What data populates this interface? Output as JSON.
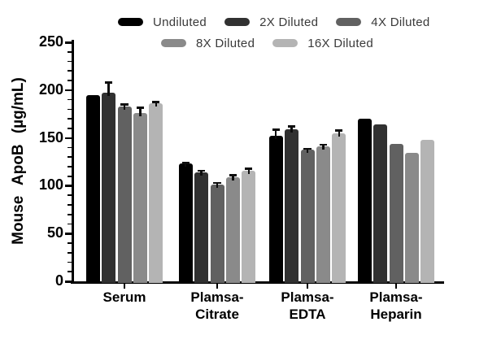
{
  "chart_data": {
    "type": "bar",
    "title": "",
    "xlabel": "",
    "ylabel": "Mouse ApoB (µg/mL)",
    "ylim": [
      0,
      250
    ],
    "ytick_step": 50,
    "yminor_step": 10,
    "ytick_labels": [
      "0",
      "50",
      "100",
      "150",
      "200",
      "250"
    ],
    "grid": false,
    "legend_position": "top",
    "error_bars": "sd, T-cap, upper only",
    "categories": [
      "Serum",
      "Plamsa-\nCitrate",
      "Plamsa-\nEDTA",
      "Plamsa-\nHeparin"
    ],
    "series": [
      {
        "name": "Undiluted",
        "color": "#000000",
        "values": [
          195,
          123,
          152,
          170
        ],
        "errors": [
          0,
          1,
          7,
          0
        ]
      },
      {
        "name": "2X Diluted",
        "color": "#313131",
        "values": [
          197,
          114,
          159,
          164
        ],
        "errors": [
          11,
          2,
          3,
          0
        ]
      },
      {
        "name": "4X Diluted",
        "color": "#616161",
        "values": [
          183,
          101,
          138,
          144
        ],
        "errors": [
          2,
          2,
          1,
          0
        ]
      },
      {
        "name": "8X Diluted",
        "color": "#8a8a8a",
        "values": [
          176,
          109,
          141,
          134
        ],
        "errors": [
          6,
          2,
          2,
          0
        ]
      },
      {
        "name": "16X Diluted",
        "color": "#b4b4b4",
        "values": [
          186,
          116,
          155,
          148
        ],
        "errors": [
          2,
          2,
          3,
          0
        ]
      }
    ],
    "legend_rows": [
      [
        0,
        1,
        2
      ],
      [
        3,
        4
      ]
    ]
  }
}
